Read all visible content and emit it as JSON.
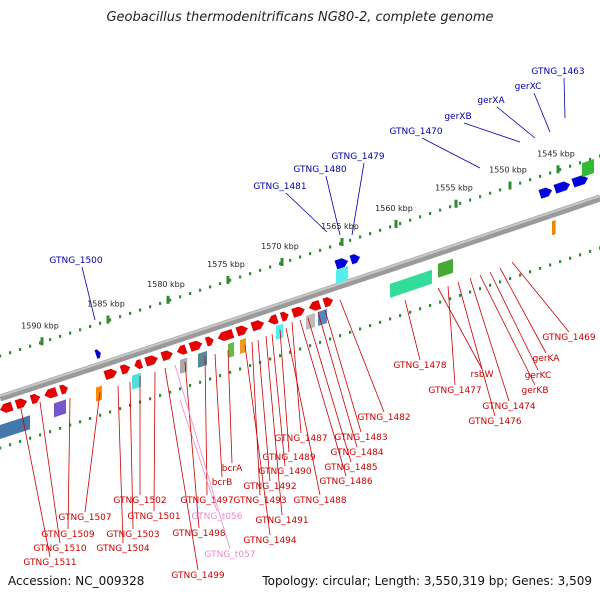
{
  "title": "Geobacillus thermodenitrificans NG80-2, complete genome",
  "footer": {
    "accession": "Accession: NC_009328",
    "topology": "Topology: circular; Length: 3,550,319 bp; Genes: 3,509"
  },
  "colors": {
    "forward_strand": "#e80000",
    "reverse_strand": "#0000e0",
    "label_forward": "#cc0000",
    "label_reverse": "#0000aa",
    "label_rna": "#ee88cc",
    "backbone": "#7a7a7a",
    "tick": "#2e8b2e"
  },
  "scale": {
    "ticks": [
      "1545 kbp",
      "1550 kbp",
      "1555 kbp",
      "1560 kbp",
      "1565 kbp",
      "1570 kbp",
      "1575 kbp",
      "1580 kbp",
      "1585 kbp",
      "1590 kbp"
    ]
  },
  "genes_top": [
    "GTNG_1463",
    "GTNG_1470",
    "GTNG_1479",
    "GTNG_1480",
    "GTNG_1481",
    "GTNG_1500",
    "gerXC",
    "gerXA",
    "gerXB"
  ],
  "genes_bottom": [
    "GTNG_1469",
    "gerKA",
    "gerKC",
    "gerKB",
    "GTNG_1474",
    "GTNG_1476",
    "GTNG_1477",
    "rsbW",
    "GTNG_1478",
    "GTNG_1482",
    "GTNG_1483",
    "GTNG_1484",
    "GTNG_1485",
    "GTNG_1486",
    "GTNG_1487",
    "GTNG_1488",
    "GTNG_1489",
    "GTNG_1490",
    "GTNG_1491",
    "GTNG_1492",
    "GTNG_1493",
    "GTNG_1494",
    "bcrA",
    "bcrB",
    "GTNG_1497",
    "GTNG_t056",
    "GTNG_1498",
    "GTNG_t057",
    "GTNG_1499",
    "GTNG_1501",
    "GTNG_1502",
    "GTNG_1503",
    "GTNG_1504",
    "GTNG_1507",
    "GTNG_1509",
    "GTNG_1510",
    "GTNG_1511"
  ]
}
